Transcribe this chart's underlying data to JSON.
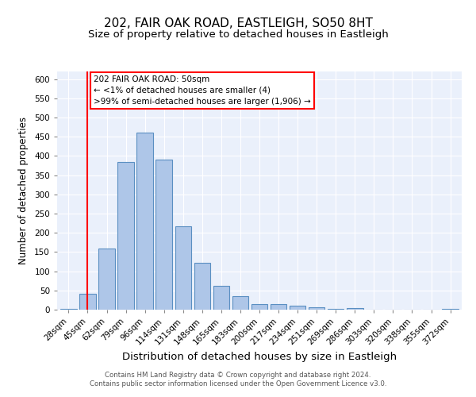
{
  "title1": "202, FAIR OAK ROAD, EASTLEIGH, SO50 8HT",
  "title2": "Size of property relative to detached houses in Eastleigh",
  "xlabel": "Distribution of detached houses by size in Eastleigh",
  "ylabel": "Number of detached properties",
  "categories": [
    "28sqm",
    "45sqm",
    "62sqm",
    "79sqm",
    "96sqm",
    "114sqm",
    "131sqm",
    "148sqm",
    "165sqm",
    "183sqm",
    "200sqm",
    "217sqm",
    "234sqm",
    "251sqm",
    "269sqm",
    "286sqm",
    "303sqm",
    "320sqm",
    "338sqm",
    "355sqm",
    "372sqm"
  ],
  "values": [
    3,
    42,
    160,
    385,
    460,
    390,
    218,
    122,
    62,
    35,
    15,
    15,
    10,
    7,
    3,
    5,
    1,
    1,
    1,
    1,
    2
  ],
  "bar_color": "#aec6e8",
  "bar_edge_color": "#5a8fc2",
  "red_line_index": 1,
  "annotation_text": "202 FAIR OAK ROAD: 50sqm\n← <1% of detached houses are smaller (4)\n>99% of semi-detached houses are larger (1,906) →",
  "annotation_box_color": "white",
  "annotation_box_edge": "red",
  "footer": "Contains HM Land Registry data © Crown copyright and database right 2024.\nContains public sector information licensed under the Open Government Licence v3.0.",
  "ylim": [
    0,
    620
  ],
  "yticks": [
    0,
    50,
    100,
    150,
    200,
    250,
    300,
    350,
    400,
    450,
    500,
    550,
    600
  ],
  "bg_color": "#eaf0fb",
  "grid_color": "#ffffff",
  "title_fontsize": 11,
  "subtitle_fontsize": 9.5,
  "tick_fontsize": 7.5,
  "xlabel_fontsize": 9.5,
  "ylabel_fontsize": 8.5,
  "footer_fontsize": 6.2
}
